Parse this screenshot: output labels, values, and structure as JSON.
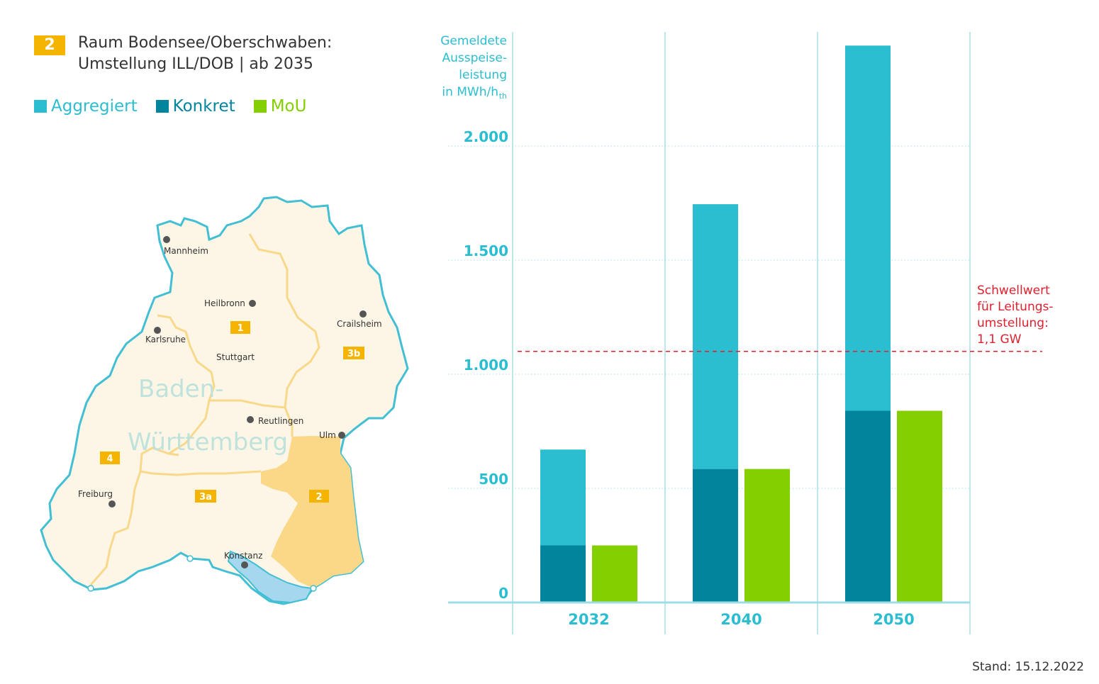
{
  "header": {
    "region_number": "2",
    "title_line1": "Raum Bodensee/Oberschwaben:",
    "title_line2": "Umstellung ILL/DOB | ab 2035"
  },
  "legend": [
    {
      "label": "Aggregiert",
      "color": "#2bbdd0"
    },
    {
      "label": "Konkret",
      "color": "#00859c"
    },
    {
      "label": "MoU",
      "color": "#84cf00"
    }
  ],
  "map": {
    "state_name_line1": "Baden-",
    "state_name_line2": "Württemberg",
    "highlight_color": "#fad888",
    "land_color": "#fdf6e6",
    "border_color": "#43bfd4",
    "region_line_color": "#f8d88a",
    "cities": [
      {
        "name": "Mannheim"
      },
      {
        "name": "Heilbronn"
      },
      {
        "name": "Crailsheim"
      },
      {
        "name": "Karlsruhe"
      },
      {
        "name": "Stuttgart"
      },
      {
        "name": "Reutlingen"
      },
      {
        "name": "Ulm"
      },
      {
        "name": "Freiburg"
      },
      {
        "name": "Konstanz"
      }
    ],
    "regions": [
      "1",
      "3b",
      "4",
      "3a",
      "2"
    ]
  },
  "chart_data": {
    "type": "bar",
    "ylabel_lines": [
      "Gemeldete",
      "Ausspeise-",
      "leistung",
      "in MWh/h"
    ],
    "ylabel_subscript": "th",
    "categories": [
      "2032",
      "2040",
      "2050"
    ],
    "ylim": [
      0,
      2500
    ],
    "yticks": [
      0,
      500,
      1000,
      1500,
      2000
    ],
    "ytick_labels": [
      "0",
      "500",
      "1.000",
      "1.500",
      "2.000"
    ],
    "series": [
      {
        "name": "Aggregiert",
        "stack": "A",
        "values": [
          420,
          1160,
          1600
        ]
      },
      {
        "name": "Konkret",
        "stack": "A",
        "values": [
          250,
          585,
          840
        ]
      },
      {
        "name": "MoU",
        "stack": "B",
        "values": [
          250,
          585,
          840
        ]
      }
    ],
    "threshold": {
      "value": 1100,
      "label_lines": [
        "Schwellwert",
        "für Leitungs-",
        "umstellung:",
        "1,1 GW"
      ],
      "color": "#e0202f"
    },
    "grid": true
  },
  "footer": {
    "stand": "Stand: 15.12.2022"
  }
}
